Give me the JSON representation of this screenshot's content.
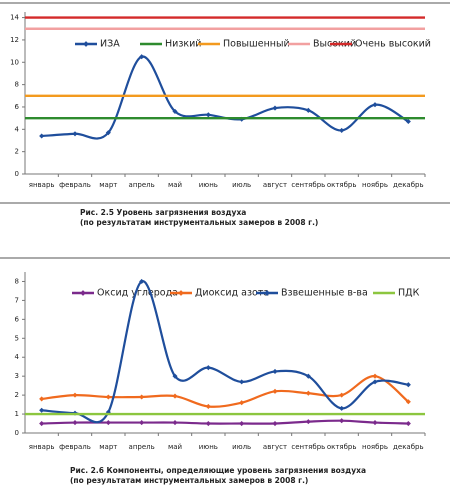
{
  "chart_data": [
    {
      "type": "line",
      "categories": [
        "январь",
        "февраль",
        "март",
        "апрель",
        "май",
        "июнь",
        "июль",
        "август",
        "сентябрь",
        "октябрь",
        "ноябрь",
        "декабрь"
      ],
      "series": [
        {
          "name": "ИЗА",
          "color": "#1f4e9c",
          "smooth": true,
          "marker": true,
          "values": [
            3.4,
            3.6,
            3.7,
            10.5,
            5.6,
            5.3,
            4.9,
            5.9,
            5.7,
            3.9,
            6.2,
            4.7
          ]
        },
        {
          "name": "Низкий",
          "color": "#2e8b2e",
          "smooth": false,
          "marker": false,
          "values": [
            5,
            5,
            5,
            5,
            5,
            5,
            5,
            5,
            5,
            5,
            5,
            5
          ]
        },
        {
          "name": "Повышенный",
          "color": "#f39a1e",
          "smooth": false,
          "marker": false,
          "values": [
            7,
            7,
            7,
            7,
            7,
            7,
            7,
            7,
            7,
            7,
            7,
            7
          ]
        },
        {
          "name": "Высокий",
          "color": "#f2a0a0",
          "smooth": false,
          "marker": false,
          "values": [
            13,
            13,
            13,
            13,
            13,
            13,
            13,
            13,
            13,
            13,
            13,
            13
          ]
        },
        {
          "name": "Очень высокий",
          "color": "#d42a2a",
          "smooth": false,
          "marker": false,
          "values": [
            14,
            14,
            14,
            14,
            14,
            14,
            14,
            14,
            14,
            14,
            14,
            14
          ]
        }
      ],
      "ylim": [
        0,
        14.5
      ],
      "yticks": [
        0,
        2,
        4,
        6,
        8,
        10,
        12,
        14
      ],
      "grid": false,
      "caption": [
        "Рис. 2.5 Уровень загрязнения воздуха",
        "(по результатам инструментальных замеров в 2008 г.)"
      ]
    },
    {
      "type": "line",
      "categories": [
        "январь",
        "февраль",
        "март",
        "апрель",
        "май",
        "июнь",
        "июль",
        "август",
        "сентябрь",
        "октябрь",
        "ноябрь",
        "декабрь"
      ],
      "series": [
        {
          "name": "Оксид углерода",
          "color": "#7b2a8c",
          "smooth": true,
          "marker": true,
          "values": [
            0.5,
            0.55,
            0.55,
            0.55,
            0.55,
            0.5,
            0.5,
            0.5,
            0.6,
            0.65,
            0.55,
            0.5
          ]
        },
        {
          "name": "Диоксид азота",
          "color": "#f06a1e",
          "smooth": true,
          "marker": true,
          "values": [
            1.8,
            2.0,
            1.9,
            1.9,
            1.95,
            1.4,
            1.6,
            2.2,
            2.1,
            2.0,
            3.0,
            1.65
          ]
        },
        {
          "name": "Взвешенные в-ва",
          "color": "#1f4e9c",
          "smooth": true,
          "marker": true,
          "values": [
            1.2,
            1.05,
            1.1,
            8.0,
            3.0,
            3.45,
            2.7,
            3.25,
            3.0,
            1.3,
            2.7,
            2.55
          ]
        },
        {
          "name": "ПДК",
          "color": "#8cc63f",
          "smooth": false,
          "marker": false,
          "values": [
            1,
            1,
            1,
            1,
            1,
            1,
            1,
            1,
            1,
            1,
            1,
            1
          ]
        }
      ],
      "ylim": [
        0,
        8.5
      ],
      "yticks": [
        0,
        1,
        2,
        3,
        4,
        5,
        6,
        7,
        8
      ],
      "grid": false,
      "caption": [
        "Рис. 2.6 Компоненты, определяющие уровень загрязнения воздуха",
        "(по результатам инструментальных замеров в 2008 г.)"
      ]
    }
  ]
}
